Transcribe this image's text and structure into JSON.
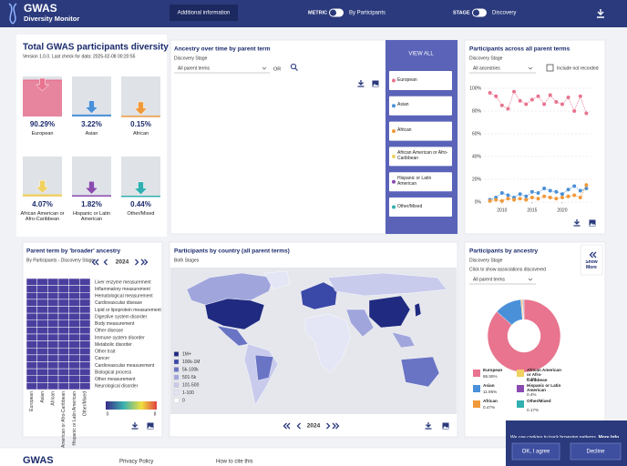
{
  "header": {
    "title": "GWAS",
    "subtitle": "Diversity Monitor",
    "button": "Additional information",
    "metric_label": "METRIC",
    "metric_value": "By Participants",
    "stage_label": "STAGE",
    "stage_value": "Discovery"
  },
  "summary": {
    "title": "Total GWAS participants diversity",
    "version": "Version 1.0.0. Last check for data: 2025-02-08 00:20:55",
    "items": [
      {
        "name": "European",
        "percent": {
          "value": 90.29,
          "label": "90.29%"
        },
        "color": "#e8748f"
      },
      {
        "name": "Asian",
        "percent": {
          "value": 3.22,
          "label": "3.22%"
        },
        "color": "#4a90d9"
      },
      {
        "name": "African",
        "percent": {
          "value": 0.15,
          "label": "0.15%"
        },
        "color": "#f0993a"
      },
      {
        "name": "African American or Afro-Caribbean",
        "percent": {
          "value": 4.07,
          "label": "4.07%"
        },
        "color": "#f0d060"
      },
      {
        "name": "Hispanic or Latin American",
        "percent": {
          "value": 1.82,
          "label": "1.82%"
        },
        "color": "#8a4ab0"
      },
      {
        "name": "Other/Mixed",
        "percent": {
          "value": 0.44,
          "label": "0.44%"
        },
        "color": "#30b0b0"
      }
    ]
  },
  "ancestry_over_time": {
    "title": "Ancestry over time by parent term",
    "stage_label": "Discovery Stage",
    "select": "All parent terms",
    "or": "OR",
    "view_all": "VIEW ALL",
    "buttons": [
      {
        "label": "European",
        "color": "#e8748f"
      },
      {
        "label": "Asian",
        "color": "#4a90d9"
      },
      {
        "label": "African",
        "color": "#f0993a"
      },
      {
        "label": "African American or Afro-Caribbean",
        "color": "#f0d060"
      },
      {
        "label": "Hispanic or Latin American",
        "color": "#8a4ab0"
      },
      {
        "label": "Other/Mixed",
        "color": "#30b0b0"
      }
    ]
  },
  "participants_panel": {
    "stage_label": "Discovery Stage",
    "select": "All ancestries",
    "checkbox": "Include not recorded"
  },
  "heatmap": {
    "title": "Parent term by 'broader' ancestry",
    "subtitle": "By Participants - Discovery Stage",
    "year": "2024",
    "rows": [
      "Liver enzyme measurement",
      "Inflammatory measurement",
      "Hematological measurement",
      "Cardiovascular disease",
      "Lipid or lipoprotein measurement",
      "Digestive system disorder",
      "Body measurement",
      "Other disease",
      "Immune system disorder",
      "Metabolic disorder",
      "Other trait",
      "Cancer",
      "Cardiovascular measurement",
      "Biological process",
      "Other measurement",
      "Neurological disorder"
    ],
    "columns": [
      "European",
      "Asian",
      "African",
      "African American or Afro-Caribbean",
      "Hispanic or Latin American",
      "Other/Mixed"
    ],
    "scale_min": "0",
    "scale_max": "8"
  },
  "map": {
    "title": "Participants by country (all parent terms)",
    "subtitle": "Both Stages",
    "year": "2024",
    "legend": [
      {
        "label": "1M+",
        "color": "#1f2a80"
      },
      {
        "label": "100k-1M",
        "color": "#3a48a8"
      },
      {
        "label": "5k-100k",
        "color": "#6a74c4"
      },
      {
        "label": "501-5k",
        "color": "#a0a6dc"
      },
      {
        "label": "101-500",
        "color": "#c8cbec"
      },
      {
        "label": "1-100",
        "color": "#e4e6f6"
      },
      {
        "label": "0",
        "color": "#ffffff"
      }
    ]
  },
  "pie_panel": {
    "stage_label": "Discovery Stage",
    "hint": "Click to show associations discovered",
    "select": "All parent terms",
    "show_more": "Show More"
  },
  "chart_data": [
    {
      "type": "line",
      "title": "Participants across all parent terms",
      "x": [
        2008,
        2009,
        2010,
        2011,
        2012,
        2013,
        2014,
        2015,
        2016,
        2017,
        2018,
        2019,
        2020,
        2021,
        2022,
        2023,
        2024
      ],
      "series": [
        {
          "color": "#e8748f",
          "values": [
            96,
            93,
            85,
            82,
            97,
            89,
            86,
            90,
            93,
            86,
            94,
            88,
            86,
            92,
            80,
            93,
            78
          ]
        },
        {
          "color": "#4a90d9",
          "values": [
            2,
            4,
            8,
            6,
            4,
            7,
            5,
            9,
            8,
            12,
            10,
            9,
            7,
            11,
            14,
            10,
            12
          ]
        },
        {
          "color": "#f0993a",
          "values": [
            1,
            2,
            1,
            3,
            2,
            3,
            2,
            4,
            3,
            5,
            4,
            3,
            4,
            5,
            6,
            4,
            15
          ]
        }
      ],
      "xlim": [
        2007,
        2025
      ],
      "xticks": [
        2010,
        2015,
        2020
      ],
      "ylim": [
        0,
        100
      ],
      "yticks": [
        {
          "value": 0,
          "label": "0%"
        },
        {
          "value": 20,
          "label": "20%"
        },
        {
          "value": 40,
          "label": "40%"
        },
        {
          "value": 60,
          "label": "60%"
        },
        {
          "value": 80,
          "label": "80%"
        },
        {
          "value": 100,
          "label": "100%"
        }
      ],
      "grid": true
    },
    {
      "type": "pie",
      "title": "Participants by ancestry",
      "categories": [
        "European",
        "Asian",
        "African",
        "African American or Afro-Caribbean",
        "Hispanic or Latin American",
        "Other/Mixed"
      ],
      "values": [
        86.55,
        11.95,
        0.47,
        0.4,
        0.4,
        0.17
      ],
      "value_labels": [
        "86.55%",
        "11.95%",
        "0.47%",
        "0.4%",
        "0.4%",
        "0.17%"
      ],
      "colors": [
        "#e8748f",
        "#4a90d9",
        "#f0993a",
        "#f0d060",
        "#8a4ab0",
        "#30b0b0"
      ]
    }
  ],
  "cookie": {
    "text": "We use cookies to track browsing patterns.",
    "link": "More Info.",
    "accept": "OK, I agree",
    "decline": "Decline"
  },
  "footer": {
    "logo": "GWAS",
    "privacy": "Privacy Policy",
    "cite": "How to cite this"
  }
}
